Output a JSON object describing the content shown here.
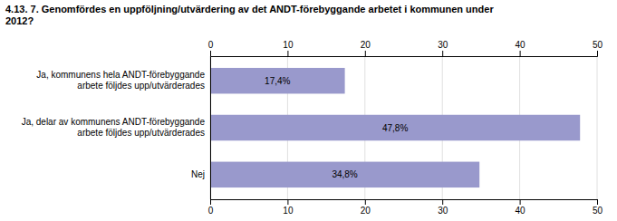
{
  "chart_data": {
    "type": "bar",
    "orientation": "horizontal",
    "title": "4.13. 7. Genomfördes en uppföljning/utvärdering av det ANDT-förebyggande arbetet i kommunen under\n2012?",
    "categories": [
      "Ja, kommunens hela ANDT-förebyggande\narbete följdes upp/utvärderades",
      "Ja, delar av kommunens ANDT-förebyggande\narbete följdes upp/utvärderades",
      "Nej"
    ],
    "values": [
      17.4,
      47.8,
      34.8
    ],
    "value_labels": [
      "17,4%",
      "47,8%",
      "34,8%"
    ],
    "data_labels": true,
    "color": "#9999cc",
    "xlim": [
      0,
      50
    ],
    "xticks": [
      0,
      10,
      20,
      30,
      40,
      50
    ],
    "grid": true
  }
}
